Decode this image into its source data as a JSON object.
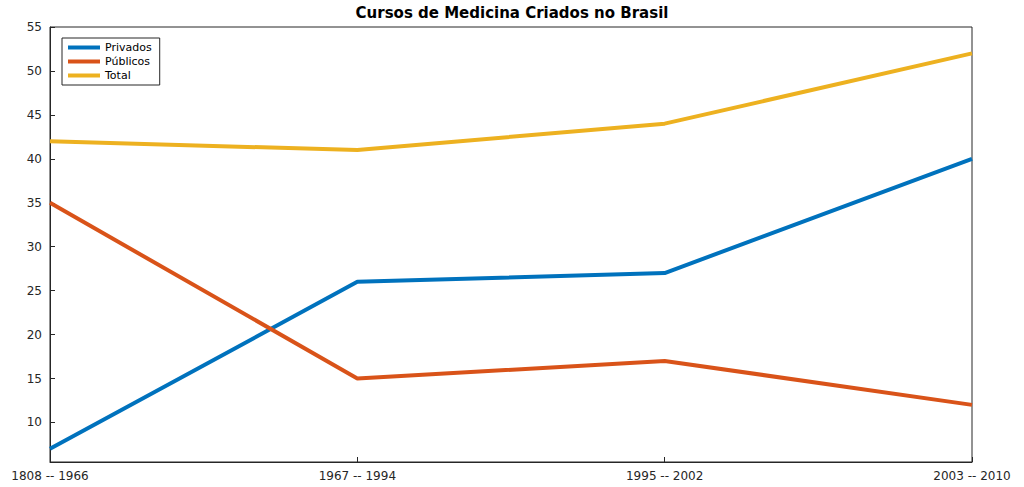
{
  "chart_data": {
    "type": "line",
    "title": "Cursos de Medicina Criados no Brasil",
    "categories": [
      "1808 -- 1966",
      "1967 -- 1994",
      "1995 -- 2002",
      "2003 -- 2010"
    ],
    "series": [
      {
        "name": "Privados",
        "color": "#0072bd",
        "values": [
          7,
          26,
          27,
          40
        ]
      },
      {
        "name": "Públicos",
        "color": "#d95319",
        "values": [
          35,
          15,
          17,
          12
        ]
      },
      {
        "name": "Total",
        "color": "#edb120",
        "values": [
          42,
          41,
          44,
          52
        ]
      }
    ],
    "ylim": [
      5.5,
      55
    ],
    "yticks": [
      10,
      15,
      20,
      25,
      30,
      35,
      40,
      45,
      50,
      55
    ],
    "grid": false,
    "legend": "upper left"
  }
}
